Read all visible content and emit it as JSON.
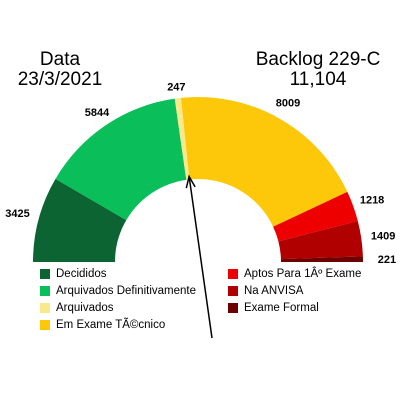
{
  "header": {
    "left_line1": "Data",
    "left_line2": "23/3/2021",
    "right_line1": "Backlog 229-C",
    "right_line2": "11,104"
  },
  "chart_data": {
    "type": "gauge",
    "series": [
      {
        "name": "Decididos",
        "value": 3425,
        "color": "#0b6432"
      },
      {
        "name": "Arquivados Definitivamente",
        "value": 5844,
        "color": "#0abf5a"
      },
      {
        "name": "Arquivados",
        "value": 247,
        "color": "#fbe88c"
      },
      {
        "name": "Em Exame TÃ©cnico",
        "value": 8009,
        "color": "#fdc80a"
      },
      {
        "name": "Aptos Para 1Âº Exame",
        "value": 1218,
        "color": "#ee0000"
      },
      {
        "name": "Na ANVISA",
        "value": 1409,
        "color": "#b00000"
      },
      {
        "name": "Exame Formal",
        "value": 221,
        "color": "#6e0000"
      }
    ],
    "value_labels": [
      "3425",
      "5844",
      "247",
      "8009",
      "1218",
      "1409",
      "221"
    ],
    "needle_value": 9516,
    "legend": [
      [
        "Decididos",
        "Arquivados Definitivamente",
        "Arquivados",
        "Em Exame TÃ©cnico"
      ],
      [
        "Aptos Para 1Âº Exame",
        "Na ANVISA",
        "Exame Formal"
      ]
    ]
  }
}
